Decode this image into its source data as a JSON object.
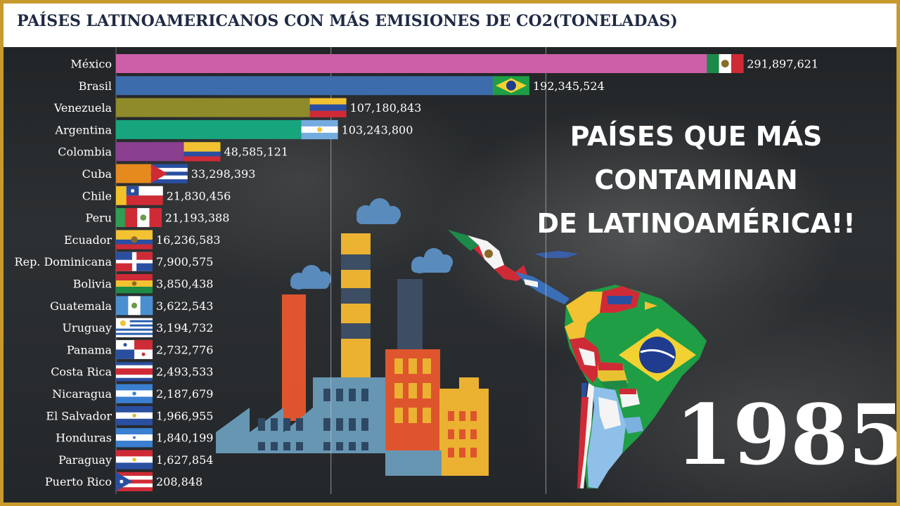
{
  "title": "PAÍSES LATINOAMERICANOS CON MÁS EMISIONES DE CO2(TONELADAS)",
  "headline": [
    "PAÍSES QUE MÁS",
    "CONTAMINAN",
    "DE LATINOAMÉRICA!!"
  ],
  "year": "1985",
  "chart_data": {
    "type": "bar",
    "orientation": "horizontal",
    "title": "PAÍSES LATINOAMERICANOS CON MÁS EMISIONES DE CO2(TONELADAS)",
    "xlim": [
      0,
      300000000
    ],
    "grid": true,
    "categories": [
      "México",
      "Brasil",
      "Venezuela",
      "Argentina",
      "Colombia",
      "Cuba",
      "Chile",
      "Peru",
      "Ecuador",
      "Rep. Dominicana",
      "Bolivia",
      "Guatemala",
      "Uruguay",
      "Panama",
      "Costa Rica",
      "Nicaragua",
      "El Salvador",
      "Honduras",
      "Paraguay",
      "Puerto Rico"
    ],
    "values": [
      291897621,
      192345524,
      107180843,
      103243800,
      48585121,
      33298393,
      21830456,
      21193388,
      16236583,
      7900575,
      3850438,
      3622543,
      3194732,
      2732776,
      2493533,
      2187679,
      1966955,
      1840199,
      1627854,
      208848
    ],
    "value_labels": [
      "291,897,621",
      "192,345,524",
      "107,180,843",
      "103,243,800",
      "48,585,121",
      "33,298,393",
      "21,830,456",
      "21,193,388",
      "16,236,583",
      "7,900,575",
      "3,850,438",
      "3,622,543",
      "3,194,732",
      "2,732,776",
      "2,493,533",
      "2,187,679",
      "1,966,955",
      "1,840,199",
      "1,627,854",
      "208,848"
    ],
    "colors": [
      "#cc5fa8",
      "#3d6cad",
      "#8f8b2a",
      "#17a57d",
      "#8a3f8f",
      "#e68a1e",
      "#f2c12a",
      "#2f9e52",
      "#1a98a6",
      "#c02b8f",
      "#c9372f",
      "#4467b0",
      "#2e5fb0",
      "#c2343a",
      "#2b55b0",
      "#c0bfc2",
      "#b93a3a",
      "#2e6fbf",
      "#2b4f9e",
      "#2a4f9c"
    ],
    "flag_icons": [
      "mexico-flag-icon",
      "brazil-flag-icon",
      "venezuela-flag-icon",
      "argentina-flag-icon",
      "colombia-flag-icon",
      "cuba-flag-icon",
      "chile-flag-icon",
      "peru-flag-icon",
      "ecuador-flag-icon",
      "dominican-republic-flag-icon",
      "bolivia-flag-icon",
      "guatemala-flag-icon",
      "uruguay-flag-icon",
      "panama-flag-icon",
      "costa-rica-flag-icon",
      "nicaragua-flag-icon",
      "el-salvador-flag-icon",
      "honduras-flag-icon",
      "paraguay-flag-icon",
      "puerto-rico-flag-icon"
    ]
  }
}
